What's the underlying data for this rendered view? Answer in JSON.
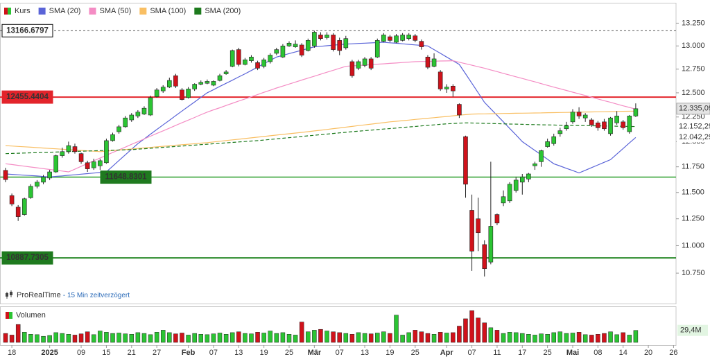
{
  "chart_data": {
    "type": "candlestick",
    "name": "Kurs",
    "log_scale": true,
    "legend": "top-left",
    "up_color": "#2bc433",
    "down_color": "#d0121b",
    "source": "ProRealTime",
    "delay": "- 15 Min zeitverzögert",
    "categories": [
      null,
      "18",
      null,
      null,
      null,
      null,
      null,
      "2025",
      null,
      null,
      null,
      null,
      "09",
      null,
      null,
      null,
      "15",
      null,
      null,
      null,
      "21",
      null,
      null,
      null,
      "27",
      null,
      null,
      null,
      null,
      "Feb",
      null,
      null,
      null,
      "07",
      null,
      null,
      null,
      "13",
      null,
      null,
      null,
      "19",
      null,
      null,
      null,
      "25",
      null,
      null,
      null,
      "Mär",
      null,
      null,
      null,
      "07",
      null,
      null,
      null,
      "13",
      null,
      null,
      null,
      "19",
      null,
      null,
      null,
      "25",
      null,
      null,
      null,
      null,
      "Apr",
      null,
      null,
      null,
      "07",
      null,
      null,
      null,
      "11",
      null,
      null,
      null,
      "17",
      null,
      null,
      null,
      "25",
      null,
      null,
      null,
      "Mai",
      null,
      null,
      null,
      "08",
      null,
      null,
      null,
      "14",
      null,
      null,
      null,
      "20",
      null,
      null,
      null,
      "26"
    ],
    "open": [
      11715,
      11470,
      11360,
      11290,
      11450,
      11560,
      11600,
      11640,
      11700,
      11860,
      11900,
      11950,
      11880,
      11790,
      11740,
      11760,
      11790,
      12010,
      12100,
      12150,
      12220,
      12260,
      12280,
      12270,
      12460,
      12520,
      12560,
      12680,
      12530,
      12450,
      12540,
      12590,
      12600,
      12580,
      12630,
      12700,
      12780,
      12960,
      12800,
      12840,
      12820,
      12780,
      12830,
      12920,
      12880,
      13000,
      12990,
      13010,
      12950,
      13000,
      13120,
      13090,
      13120,
      13060,
      12980,
      12830,
      12760,
      12790,
      12860,
      12880,
      13050,
      13100,
      13040,
      13060,
      13080,
      13110,
      13050,
      12880,
      12780,
      12720,
      12540,
      12570,
      12380,
      12050,
      11330,
      11250,
      11010,
      10850,
      11290,
      11400,
      11420,
      11520,
      11600,
      11630,
      11760,
      11800,
      11950,
      11980,
      12080,
      12130,
      12200,
      12300,
      12240,
      12220,
      12190,
      12200,
      12080,
      12190,
      12200,
      12100,
      12260,
      null,
      null,
      null,
      null,
      null,
      null
    ],
    "high": [
      11740,
      11490,
      11380,
      11450,
      11580,
      11620,
      11670,
      11720,
      11870,
      11940,
      12000,
      11980,
      11890,
      11810,
      11830,
      11830,
      12030,
      12090,
      12170,
      12260,
      12290,
      12320,
      12360,
      12470,
      12550,
      12580,
      12660,
      12700,
      12550,
      12560,
      12600,
      12630,
      12640,
      12630,
      12700,
      12740,
      12960,
      12980,
      12870,
      12900,
      12840,
      12870,
      12920,
      12980,
      13020,
      13050,
      13060,
      13030,
      13080,
      13166.6797,
      13150,
      13150,
      13140,
      13090,
      13110,
      12850,
      12850,
      12880,
      12880,
      13080,
      13140,
      13120,
      13130,
      13140,
      13140,
      13130,
      13070,
      12900,
      12920,
      12740,
      12590,
      12590,
      12390,
      12060,
      11480,
      11450,
      11050,
      11800,
      11300,
      11520,
      11600,
      11650,
      11680,
      11690,
      11800,
      11920,
      12030,
      12080,
      12140,
      12200,
      12330,
      12350,
      12290,
      12240,
      12210,
      12230,
      12250,
      12310,
      12220,
      12270,
      12390,
      null,
      null,
      null,
      null,
      null,
      null
    ],
    "low": [
      11600,
      11370,
      11230,
      11280,
      11440,
      11540,
      11580,
      11620,
      11690,
      11840,
      11880,
      11880,
      11780,
      11700,
      11720,
      11720,
      11780,
      12000,
      12080,
      12140,
      12200,
      12240,
      12270,
      12260,
      12450,
      12500,
      12550,
      12550,
      12420,
      12440,
      12520,
      12580,
      12590,
      12570,
      12620,
      12690,
      12770,
      12780,
      12790,
      12820,
      12740,
      12760,
      12810,
      12900,
      12870,
      12990,
      12980,
      12880,
      12940,
      12980,
      13060,
      13070,
      12940,
      12900,
      12960,
      12660,
      12740,
      12770,
      12740,
      12870,
      13040,
      13040,
      13030,
      13050,
      13060,
      13040,
      12960,
      12750,
      12770,
      12520,
      12500,
      12460,
      12240,
      11450,
      10770,
      10950,
      10720,
      10830,
      11190,
      11370,
      11400,
      11500,
      11480,
      11600,
      11720,
      11750,
      11940,
      11960,
      12050,
      12110,
      12180,
      12230,
      12200,
      12150,
      12110,
      12110,
      12060,
      12170,
      12120,
      12080,
      12250,
      null,
      null,
      null,
      null,
      null,
      null
    ],
    "close": [
      11625,
      11390,
      11270,
      11440,
      11560,
      11600,
      11650,
      11700,
      11860,
      11900,
      11960,
      11900,
      11800,
      11730,
      11800,
      11810,
      12010,
      12070,
      12150,
      12240,
      12270,
      12300,
      12340,
      12450,
      12530,
      12560,
      12630,
      12570,
      12430,
      12540,
      12590,
      12610,
      12620,
      12620,
      12680,
      12720,
      12950,
      12800,
      12850,
      12880,
      12760,
      12850,
      12900,
      12960,
      13000,
      13030,
      13020,
      12900,
      13060,
      13150,
      13080,
      13120,
      12960,
      12950,
      13080,
      12680,
      12830,
      12860,
      12760,
      13060,
      13120,
      13060,
      13110,
      13120,
      13120,
      13060,
      12990,
      12770,
      12860,
      12540,
      12560,
      12520,
      12270,
      11580,
      10950,
      11120,
      10790,
      11180,
      11210,
      11460,
      11580,
      11620,
      11650,
      11680,
      11780,
      11910,
      12000,
      12050,
      12110,
      12160,
      12300,
      12260,
      12270,
      12170,
      12140,
      12130,
      12240,
      12260,
      12140,
      12260,
      12335.09,
      null,
      null,
      null,
      null,
      null,
      null
    ],
    "close_label": {
      "value": 12335.09,
      "label": "12.335,09"
    },
    "series": [
      {
        "name": "SMA (20)",
        "color": "#5a64d8",
        "dash": false,
        "values": [
          11680,
          11676,
          11672,
          11668,
          11664,
          11660,
          11655,
          11650,
          11656,
          11661,
          11667,
          11672,
          11678,
          11683,
          11689,
          11694,
          11700,
          11756,
          11812,
          11868,
          11924,
          11980,
          12027,
          12075,
          12122,
          12169,
          12216,
          12264,
          12311,
          12358,
          12405,
          12453,
          12500,
          12533,
          12567,
          12600,
          12633,
          12667,
          12700,
          12736,
          12772,
          12808,
          12844,
          12880,
          12898,
          12917,
          12935,
          12953,
          12972,
          12990,
          12996,
          13002,
          13008,
          13014,
          13020,
          13023,
          13027,
          13030,
          13033,
          13037,
          13040,
          13034,
          13029,
          13023,
          13017,
          13011,
          13006,
          13000,
          12960,
          12920,
          12880,
          12840,
          12800,
          12700,
          12600,
          12500,
          12400,
          12333,
          12267,
          12200,
          12133,
          12067,
          12000,
          11956,
          11912,
          11868,
          11824,
          11780,
          11758,
          11735,
          11713,
          11690,
          11716,
          11742,
          11768,
          11794,
          11820,
          11876,
          11931,
          11987,
          12042.29,
          null,
          null,
          null,
          null,
          null,
          null
        ],
        "last_label": {
          "value": 12042.29,
          "label": "12.042,29"
        }
      },
      {
        "name": "SMA (50)",
        "color": "#f48cc4",
        "dash": false,
        "values": [
          11780,
          11772,
          11764,
          11756,
          11748,
          11740,
          11732,
          11724,
          11716,
          11708,
          11700,
          11727,
          11755,
          11782,
          11809,
          11836,
          11864,
          11891,
          11918,
          11945,
          11973,
          12000,
          12027,
          12055,
          12082,
          12109,
          12136,
          12164,
          12191,
          12218,
          12245,
          12273,
          12300,
          12323,
          12345,
          12368,
          12391,
          12414,
          12436,
          12459,
          12482,
          12505,
          12527,
          12550,
          12571,
          12592,
          12613,
          12634,
          12655,
          12675,
          12696,
          12717,
          12738,
          12759,
          12780,
          12785,
          12789,
          12794,
          12798,
          12803,
          12807,
          12812,
          12816,
          12821,
          12825,
          12830,
          12832,
          12833,
          12835,
          12837,
          12838,
          12840,
          12824,
          12808,
          12792,
          12776,
          12760,
          12742,
          12724,
          12705,
          12687,
          12669,
          12651,
          12633,
          12615,
          12596,
          12578,
          12560,
          12542,
          12525,
          12507,
          12489,
          12472,
          12454,
          12436,
          12418,
          12401,
          12383,
          12365,
          12348,
          12330,
          null,
          null,
          null,
          null,
          null,
          null
        ]
      },
      {
        "name": "SMA (100)",
        "color": "#f9bf63",
        "dash": false,
        "values": [
          11960,
          11956,
          11952,
          11948,
          11944,
          11940,
          11936,
          11932,
          11928,
          11924,
          11920,
          11916,
          11912,
          11908,
          11904,
          11900,
          11905,
          11911,
          11916,
          11921,
          11926,
          11932,
          11937,
          11942,
          11948,
          11953,
          11958,
          11964,
          11969,
          11974,
          11979,
          11985,
          11990,
          11997,
          12004,
          12011,
          12018,
          12024,
          12031,
          12038,
          12045,
          12052,
          12059,
          12066,
          12073,
          12079,
          12086,
          12093,
          12100,
          12108,
          12115,
          12123,
          12131,
          12138,
          12146,
          12154,
          12162,
          12169,
          12177,
          12185,
          12192,
          12200,
          12206,
          12212,
          12218,
          12225,
          12231,
          12237,
          12243,
          12249,
          12255,
          12262,
          12268,
          12274,
          12280,
          12281,
          12282,
          12283,
          12284,
          12286,
          12287,
          12288,
          12289,
          12290,
          12291,
          12292,
          12294,
          12295,
          12296,
          12297,
          12298,
          12300,
          12301,
          12302,
          12303,
          12304,
          12305,
          12307,
          12308,
          12309,
          12310,
          null,
          null,
          null,
          null,
          null,
          null
        ]
      },
      {
        "name": "SMA (200)",
        "color": "#1d7a1d",
        "dash": true,
        "values": [
          11880,
          11882,
          11884,
          11886,
          11888,
          11890,
          11892,
          11894,
          11896,
          11898,
          11900,
          11902,
          11904,
          11906,
          11908,
          11910,
          11912,
          11914,
          11916,
          11918,
          11920,
          11925,
          11929,
          11934,
          11938,
          11943,
          11947,
          11952,
          11956,
          11961,
          11965,
          11970,
          11974,
          11979,
          11983,
          11988,
          11992,
          11997,
          12001,
          12006,
          12010,
          12016,
          12022,
          12028,
          12034,
          12040,
          12046,
          12052,
          12058,
          12064,
          12070,
          12076,
          12082,
          12088,
          12094,
          12100,
          12105,
          12111,
          12116,
          12121,
          12127,
          12132,
          12137,
          12143,
          12148,
          12153,
          12159,
          12164,
          12169,
          12175,
          12180,
          12183,
          12187,
          12190,
          12188,
          12187,
          12185,
          12183,
          12182,
          12180,
          12178,
          12177,
          12175,
          12173,
          12172,
          12170,
          12169,
          12168,
          12166,
          12165,
          12164,
          12163,
          12162,
          12160,
          12159,
          12158,
          12157,
          12156,
          12155,
          12153,
          12152.29,
          null,
          null,
          null,
          null,
          null,
          null
        ],
        "last_label": {
          "value": 12152.29,
          "label": "12.152,29"
        }
      }
    ],
    "levels": [
      {
        "value": 13166.6797,
        "color": "#555555",
        "dash": true,
        "label_fill": "#ffffff",
        "label_text": "#000000"
      },
      {
        "value": 12455.4404,
        "color": "#e3242b",
        "dash": false,
        "label_fill": "#e3242b",
        "label_text": "#ffffff"
      },
      {
        "value": 11648.8301,
        "color": "#62b862",
        "dash": false,
        "label_fill": "#1f7a1f",
        "label_text": "#ffffff"
      },
      {
        "value": 10887.7305,
        "color": "#2a8a2a",
        "dash": false,
        "label_fill": "#1f7a1f",
        "label_text": "#ffffff"
      }
    ],
    "ylim": [
      10480,
      13470
    ],
    "yticks": [
      {
        "value": 13250,
        "label": "13.250"
      },
      {
        "value": 13000,
        "label": "13.000"
      },
      {
        "value": 12750,
        "label": "12.750"
      },
      {
        "value": 12500,
        "label": "12.500"
      },
      {
        "value": 12250,
        "label": "12.250"
      },
      {
        "value": 12000,
        "label": "12.000"
      },
      {
        "value": 11750,
        "label": "11.750"
      },
      {
        "value": 11500,
        "label": "11.500"
      },
      {
        "value": 11250,
        "label": "11.250"
      },
      {
        "value": 11000,
        "label": "11.000"
      },
      {
        "value": 10750,
        "label": "10.750"
      }
    ],
    "volume": {
      "title": "Volumen",
      "ylim": [
        0,
        80
      ],
      "values": [
        22,
        18,
        44,
        25,
        20,
        19,
        15,
        17,
        24,
        22,
        20,
        18,
        21,
        26,
        19,
        28,
        25,
        22,
        23,
        21,
        20,
        24,
        22,
        19,
        25,
        30,
        24,
        21,
        23,
        18,
        22,
        20,
        19,
        21,
        23,
        20,
        24,
        26,
        22,
        21,
        25,
        23,
        28,
        22,
        24,
        20,
        18,
        50,
        26,
        30,
        32,
        28,
        26,
        24,
        22,
        20,
        24,
        22,
        21,
        23,
        26,
        22,
        67,
        18,
        24,
        30,
        26,
        22,
        20,
        25,
        23,
        24,
        40,
        58,
        78,
        60,
        48,
        36,
        30,
        22,
        25,
        24,
        22,
        20,
        18,
        21,
        20,
        24,
        26,
        22,
        23,
        25,
        19,
        18,
        20,
        22,
        26,
        19,
        24,
        18,
        29.4,
        null,
        null,
        null,
        null,
        null,
        null
      ],
      "last_label": {
        "value": 29.4,
        "label": "29,4M"
      }
    }
  }
}
